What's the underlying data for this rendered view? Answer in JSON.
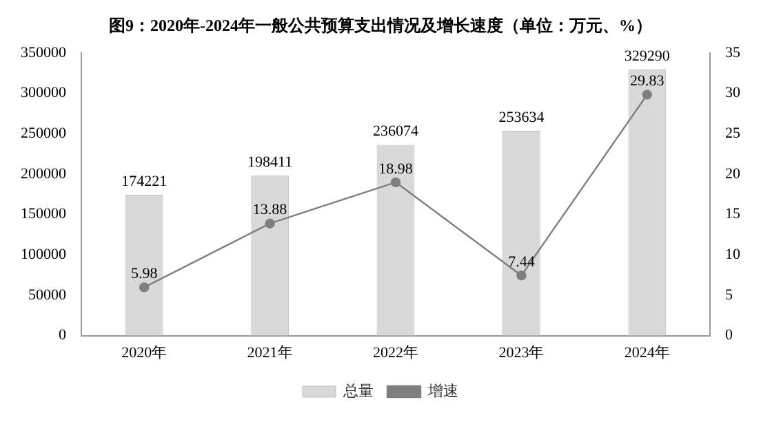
{
  "chart_data": {
    "type": "bar",
    "title": "图9：2020年-2024年一般公共预算支出情况及增长速度（单位：万元、%）",
    "categories": [
      "2020年",
      "2021年",
      "2022年",
      "2023年",
      "2024年"
    ],
    "series": [
      {
        "name": "总量",
        "color": "#d9d9d9",
        "values": [
          174221,
          198411,
          236074,
          253634,
          329290
        ]
      },
      {
        "name": "增速",
        "type": "line",
        "axis": "y2",
        "color": "#7f7f7f",
        "values": [
          5.98,
          13.88,
          18.98,
          7.44,
          29.83
        ]
      }
    ],
    "ylim": [
      0,
      350000
    ],
    "yticks": [
      0,
      50000,
      100000,
      150000,
      200000,
      250000,
      300000,
      350000
    ],
    "y2lim": [
      0,
      35
    ],
    "y2ticks": [
      0,
      5,
      10,
      15,
      20,
      25,
      30,
      35
    ],
    "data_labels": true,
    "grid": false,
    "legend": "bottom",
    "marker": "circle",
    "line_style": "solid"
  }
}
